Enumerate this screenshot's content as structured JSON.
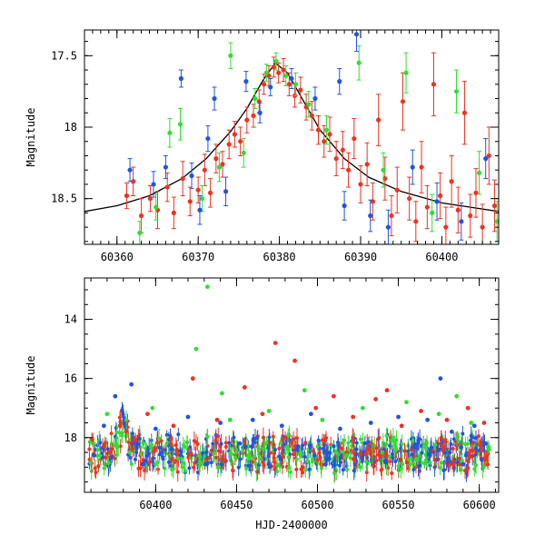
{
  "chart_data": [
    {
      "type": "scatter",
      "title": "",
      "xlabel": "",
      "ylabel": "Magnitude",
      "xlim": [
        60356,
        60407
      ],
      "ylim": [
        18.82,
        17.32
      ],
      "y_inverted": true,
      "xticks": [
        60360,
        60370,
        60380,
        60390,
        60400
      ],
      "yticks": [
        17.5,
        18,
        18.5
      ],
      "ytick_labels": [
        "17.5",
        "18",
        "18.5"
      ],
      "grid": false,
      "legend": "none",
      "series": [
        {
          "color": "#ee3322",
          "points": [
            {
              "x": 60361.2,
              "y": 18.48,
              "e": 0.09
            },
            {
              "x": 60362.0,
              "y": 18.38,
              "e": 0.1
            },
            {
              "x": 60363.0,
              "y": 18.62,
              "e": 0.12
            },
            {
              "x": 60364.1,
              "y": 18.5,
              "e": 0.09
            },
            {
              "x": 60365.0,
              "y": 18.58,
              "e": 0.13
            },
            {
              "x": 60366.2,
              "y": 18.42,
              "e": 0.1
            },
            {
              "x": 60367.0,
              "y": 18.6,
              "e": 0.11
            },
            {
              "x": 60368.1,
              "y": 18.36,
              "e": 0.12
            },
            {
              "x": 60369.0,
              "y": 18.52,
              "e": 0.1
            },
            {
              "x": 60370.0,
              "y": 18.44,
              "e": 0.09
            },
            {
              "x": 60370.8,
              "y": 18.3,
              "e": 0.11
            },
            {
              "x": 60371.5,
              "y": 18.46,
              "e": 0.1
            },
            {
              "x": 60372.2,
              "y": 18.22,
              "e": 0.1
            },
            {
              "x": 60373.0,
              "y": 18.26,
              "e": 0.09
            },
            {
              "x": 60373.8,
              "y": 18.12,
              "e": 0.1
            },
            {
              "x": 60374.5,
              "y": 18.05,
              "e": 0.09
            },
            {
              "x": 60375.2,
              "y": 18.1,
              "e": 0.1
            },
            {
              "x": 60376.0,
              "y": 17.95,
              "e": 0.09
            },
            {
              "x": 60376.8,
              "y": 17.92,
              "e": 0.08
            },
            {
              "x": 60377.5,
              "y": 17.82,
              "e": 0.08
            },
            {
              "x": 60378.1,
              "y": 17.7,
              "e": 0.07
            },
            {
              "x": 60378.7,
              "y": 17.64,
              "e": 0.07
            },
            {
              "x": 60379.3,
              "y": 17.58,
              "e": 0.07
            },
            {
              "x": 60379.9,
              "y": 17.62,
              "e": 0.07
            },
            {
              "x": 60380.5,
              "y": 17.6,
              "e": 0.08
            },
            {
              "x": 60381.2,
              "y": 17.7,
              "e": 0.08
            },
            {
              "x": 60381.9,
              "y": 17.78,
              "e": 0.08
            },
            {
              "x": 60382.6,
              "y": 17.74,
              "e": 0.09
            },
            {
              "x": 60383.3,
              "y": 17.86,
              "e": 0.09
            },
            {
              "x": 60384.0,
              "y": 17.92,
              "e": 0.1
            },
            {
              "x": 60384.8,
              "y": 18.02,
              "e": 0.1
            },
            {
              "x": 60385.5,
              "y": 18.1,
              "e": 0.11
            },
            {
              "x": 60386.2,
              "y": 18.05,
              "e": 0.12
            },
            {
              "x": 60387.0,
              "y": 18.22,
              "e": 0.12
            },
            {
              "x": 60387.8,
              "y": 18.16,
              "e": 0.13
            },
            {
              "x": 60388.5,
              "y": 18.3,
              "e": 0.12
            },
            {
              "x": 60389.2,
              "y": 18.08,
              "e": 0.14
            },
            {
              "x": 60390.0,
              "y": 18.4,
              "e": 0.13
            },
            {
              "x": 60390.8,
              "y": 18.26,
              "e": 0.15
            },
            {
              "x": 60391.5,
              "y": 18.52,
              "e": 0.13
            },
            {
              "x": 60392.2,
              "y": 17.95,
              "e": 0.18
            },
            {
              "x": 60393.0,
              "y": 18.36,
              "e": 0.15
            },
            {
              "x": 60393.8,
              "y": 18.62,
              "e": 0.14
            },
            {
              "x": 60394.5,
              "y": 18.44,
              "e": 0.16
            },
            {
              "x": 60395.2,
              "y": 17.82,
              "e": 0.2
            },
            {
              "x": 60396.0,
              "y": 18.5,
              "e": 0.15
            },
            {
              "x": 60396.8,
              "y": 18.66,
              "e": 0.14
            },
            {
              "x": 60397.5,
              "y": 18.28,
              "e": 0.18
            },
            {
              "x": 60398.2,
              "y": 18.56,
              "e": 0.15
            },
            {
              "x": 60399.0,
              "y": 17.7,
              "e": 0.22
            },
            {
              "x": 60399.8,
              "y": 18.48,
              "e": 0.16
            },
            {
              "x": 60400.5,
              "y": 18.7,
              "e": 0.14
            },
            {
              "x": 60401.2,
              "y": 18.38,
              "e": 0.18
            },
            {
              "x": 60402.0,
              "y": 18.58,
              "e": 0.16
            },
            {
              "x": 60402.8,
              "y": 17.9,
              "e": 0.22
            },
            {
              "x": 60403.5,
              "y": 18.62,
              "e": 0.15
            },
            {
              "x": 60404.2,
              "y": 18.46,
              "e": 0.17
            },
            {
              "x": 60405.0,
              "y": 18.7,
              "e": 0.16
            },
            {
              "x": 60405.8,
              "y": 18.2,
              "e": 0.2
            },
            {
              "x": 60406.5,
              "y": 18.55,
              "e": 0.18
            }
          ]
        },
        {
          "color": "#33dd33",
          "points": [
            {
              "x": 60362.8,
              "y": 18.74,
              "e": 0.08
            },
            {
              "x": 60364.8,
              "y": 18.56,
              "e": 0.09
            },
            {
              "x": 60366.5,
              "y": 18.04,
              "e": 0.1
            },
            {
              "x": 60367.8,
              "y": 17.98,
              "e": 0.11
            },
            {
              "x": 60370.5,
              "y": 18.5,
              "e": 0.09
            },
            {
              "x": 60372.6,
              "y": 18.28,
              "e": 0.1
            },
            {
              "x": 60374.0,
              "y": 17.5,
              "e": 0.09
            },
            {
              "x": 60375.6,
              "y": 18.18,
              "e": 0.1
            },
            {
              "x": 60377.0,
              "y": 17.8,
              "e": 0.07
            },
            {
              "x": 60378.4,
              "y": 17.62,
              "e": 0.06
            },
            {
              "x": 60379.6,
              "y": 17.54,
              "e": 0.06
            },
            {
              "x": 60380.8,
              "y": 17.64,
              "e": 0.07
            },
            {
              "x": 60382.0,
              "y": 17.7,
              "e": 0.08
            },
            {
              "x": 60383.6,
              "y": 17.84,
              "e": 0.09
            },
            {
              "x": 60385.8,
              "y": 18.02,
              "e": 0.1
            },
            {
              "x": 60389.8,
              "y": 17.55,
              "e": 0.12
            },
            {
              "x": 60392.8,
              "y": 18.3,
              "e": 0.12
            },
            {
              "x": 60395.6,
              "y": 17.62,
              "e": 0.14
            },
            {
              "x": 60398.8,
              "y": 18.6,
              "e": 0.13
            },
            {
              "x": 60401.8,
              "y": 17.75,
              "e": 0.15
            },
            {
              "x": 60404.6,
              "y": 18.32,
              "e": 0.15
            },
            {
              "x": 60406.8,
              "y": 18.66,
              "e": 0.14
            }
          ]
        },
        {
          "color": "#2255dd",
          "points": [
            {
              "x": 60361.6,
              "y": 18.3,
              "e": 0.08
            },
            {
              "x": 60364.5,
              "y": 18.4,
              "e": 0.09
            },
            {
              "x": 60366.0,
              "y": 18.28,
              "e": 0.08
            },
            {
              "x": 60367.9,
              "y": 17.66,
              "e": 0.06
            },
            {
              "x": 60369.2,
              "y": 18.34,
              "e": 0.09
            },
            {
              "x": 60370.2,
              "y": 18.58,
              "e": 0.1
            },
            {
              "x": 60371.2,
              "y": 18.08,
              "e": 0.09
            },
            {
              "x": 60372.0,
              "y": 17.8,
              "e": 0.08
            },
            {
              "x": 60373.4,
              "y": 18.45,
              "e": 0.1
            },
            {
              "x": 60375.9,
              "y": 17.68,
              "e": 0.07
            },
            {
              "x": 60377.6,
              "y": 17.9,
              "e": 0.07
            },
            {
              "x": 60378.9,
              "y": 17.72,
              "e": 0.06
            },
            {
              "x": 60381.5,
              "y": 17.66,
              "e": 0.07
            },
            {
              "x": 60384.4,
              "y": 17.8,
              "e": 0.08
            },
            {
              "x": 60387.4,
              "y": 17.68,
              "e": 0.09
            },
            {
              "x": 60388.0,
              "y": 18.55,
              "e": 0.1
            },
            {
              "x": 60389.5,
              "y": 17.35,
              "e": 0.12
            },
            {
              "x": 60391.2,
              "y": 18.62,
              "e": 0.11
            },
            {
              "x": 60393.4,
              "y": 18.7,
              "e": 0.12
            },
            {
              "x": 60396.4,
              "y": 18.28,
              "e": 0.12
            },
            {
              "x": 60399.4,
              "y": 18.52,
              "e": 0.13
            },
            {
              "x": 60402.4,
              "y": 18.66,
              "e": 0.13
            },
            {
              "x": 60405.4,
              "y": 18.22,
              "e": 0.14
            }
          ]
        }
      ],
      "model_curve": {
        "type": "line",
        "color": "#000000",
        "points": [
          {
            "x": 60356,
            "y": 18.59
          },
          {
            "x": 60360,
            "y": 18.55
          },
          {
            "x": 60364,
            "y": 18.48
          },
          {
            "x": 60368,
            "y": 18.36
          },
          {
            "x": 60371,
            "y": 18.22
          },
          {
            "x": 60374,
            "y": 18.03
          },
          {
            "x": 60376,
            "y": 17.87
          },
          {
            "x": 60378,
            "y": 17.67
          },
          {
            "x": 60379.5,
            "y": 17.55
          },
          {
            "x": 60381,
            "y": 17.62
          },
          {
            "x": 60383,
            "y": 17.82
          },
          {
            "x": 60385,
            "y": 18.02
          },
          {
            "x": 60388,
            "y": 18.22
          },
          {
            "x": 60391,
            "y": 18.35
          },
          {
            "x": 60395,
            "y": 18.45
          },
          {
            "x": 60400,
            "y": 18.53
          },
          {
            "x": 60407,
            "y": 18.59
          }
        ]
      }
    },
    {
      "type": "scatter",
      "title": "",
      "xlabel": "HJD-2400000",
      "ylabel": "Magnitude",
      "xlim": [
        60356,
        60612
      ],
      "ylim": [
        19.85,
        12.6
      ],
      "y_inverted": true,
      "xticks": [
        60400,
        60450,
        60500,
        60550,
        60600
      ],
      "yticks": [
        14,
        16,
        18
      ],
      "ytick_labels": [
        "14",
        "16",
        "18"
      ],
      "grid": false,
      "legend": "none",
      "series": [
        {
          "color": "#2255dd",
          "points": [
            {
              "x": 60362,
              "y": 18.6
            },
            {
              "x": 60368,
              "y": 17.6
            },
            {
              "x": 60375,
              "y": 16.6
            },
            {
              "x": 60385,
              "y": 16.2
            },
            {
              "x": 60392,
              "y": 18.9
            },
            {
              "x": 60400,
              "y": 17.7
            },
            {
              "x": 60410,
              "y": 18.4
            },
            {
              "x": 60420,
              "y": 17.3
            },
            {
              "x": 60431,
              "y": 18.9
            },
            {
              "x": 60440,
              "y": 17.5
            },
            {
              "x": 60452,
              "y": 18.2
            },
            {
              "x": 60460,
              "y": 17.4
            },
            {
              "x": 60470,
              "y": 18.9
            },
            {
              "x": 60478,
              "y": 17.6
            },
            {
              "x": 60488,
              "y": 18.3
            },
            {
              "x": 60496,
              "y": 17.2
            },
            {
              "x": 60505,
              "y": 18.9
            },
            {
              "x": 60514,
              "y": 17.7
            },
            {
              "x": 60524,
              "y": 18.4
            },
            {
              "x": 60533,
              "y": 17.5
            },
            {
              "x": 60542,
              "y": 18.8
            },
            {
              "x": 60550,
              "y": 17.3
            },
            {
              "x": 60560,
              "y": 18.3
            },
            {
              "x": 60568,
              "y": 17.4
            },
            {
              "x": 60576,
              "y": 16.0
            },
            {
              "x": 60583,
              "y": 17.8
            },
            {
              "x": 60590,
              "y": 18.9
            },
            {
              "x": 60597,
              "y": 17.6
            },
            {
              "x": 60604,
              "y": 18.2
            }
          ]
        },
        {
          "color": "#33dd33",
          "points": [
            {
              "x": 60370,
              "y": 17.2
            },
            {
              "x": 60384,
              "y": 18.5
            },
            {
              "x": 60398,
              "y": 17.0
            },
            {
              "x": 60414,
              "y": 18.7
            },
            {
              "x": 60425,
              "y": 15.0
            },
            {
              "x": 60432,
              "y": 12.9
            },
            {
              "x": 60441,
              "y": 16.5
            },
            {
              "x": 60446,
              "y": 17.4
            },
            {
              "x": 60458,
              "y": 18.7
            },
            {
              "x": 60470,
              "y": 17.1
            },
            {
              "x": 60482,
              "y": 18.4
            },
            {
              "x": 60492,
              "y": 16.4
            },
            {
              "x": 60503,
              "y": 17.4
            },
            {
              "x": 60518,
              "y": 18.6
            },
            {
              "x": 60528,
              "y": 17.0
            },
            {
              "x": 60540,
              "y": 18.5
            },
            {
              "x": 60555,
              "y": 16.8
            },
            {
              "x": 60566,
              "y": 18.3
            },
            {
              "x": 60575,
              "y": 17.2
            },
            {
              "x": 60586,
              "y": 16.6
            },
            {
              "x": 60595,
              "y": 17.5
            },
            {
              "x": 60606,
              "y": 18.4
            }
          ]
        },
        {
          "color": "#ee3322",
          "points": [
            {
              "x": 60378,
              "y": 17.6
            },
            {
              "x": 60395,
              "y": 17.2
            },
            {
              "x": 60411,
              "y": 17.6
            },
            {
              "x": 60423,
              "y": 16.0
            },
            {
              "x": 60438,
              "y": 17.4
            },
            {
              "x": 60455,
              "y": 16.3
            },
            {
              "x": 60466,
              "y": 17.2
            },
            {
              "x": 60474,
              "y": 14.8
            },
            {
              "x": 60486,
              "y": 15.4
            },
            {
              "x": 60499,
              "y": 17.0
            },
            {
              "x": 60510,
              "y": 16.6
            },
            {
              "x": 60522,
              "y": 17.3
            },
            {
              "x": 60536,
              "y": 16.7
            },
            {
              "x": 60543,
              "y": 16.4
            },
            {
              "x": 60552,
              "y": 17.6
            },
            {
              "x": 60564,
              "y": 17.1
            },
            {
              "x": 60580,
              "y": 17.4
            },
            {
              "x": 60593,
              "y": 17.0
            },
            {
              "x": 60603,
              "y": 17.5
            }
          ]
        }
      ]
    }
  ]
}
